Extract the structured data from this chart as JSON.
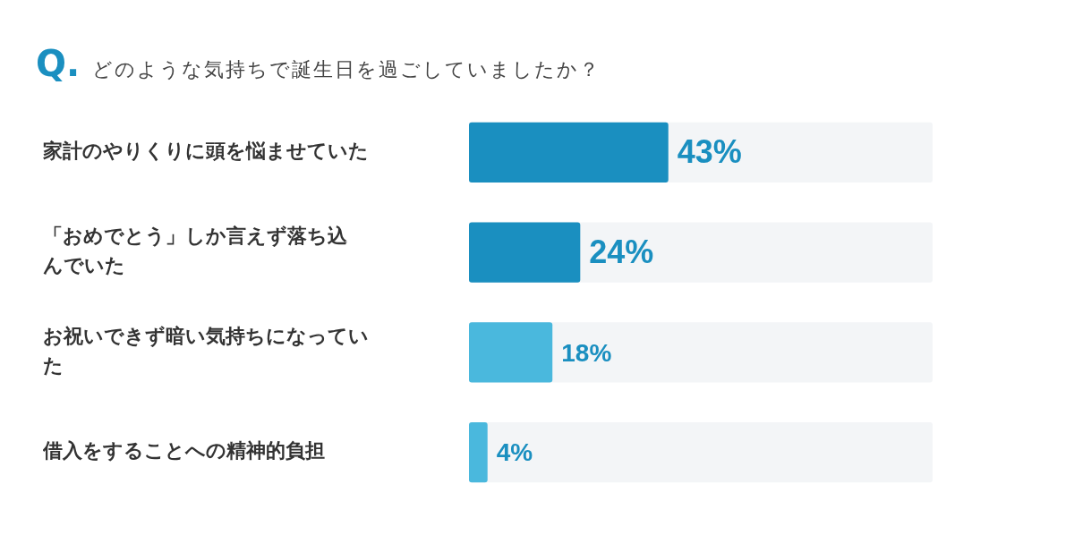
{
  "chart_data": {
    "type": "bar",
    "orientation": "horizontal",
    "title": "どのような気持ちで誕生日を過ごしていましたか？",
    "annotations": [
      "Q."
    ],
    "categories": [
      "家計のやりくりに頭を悩ませていた",
      "「おめでとう」しか言えず落ち込んでいた",
      "お祝いできず暗い気持ちになっていた",
      "借入をすることへの精神的負担"
    ],
    "values": [
      43,
      24,
      18,
      4
    ],
    "colors": [
      "#1a8fc0",
      "#1a8fc0",
      "#4ab8dd",
      "#4ab8dd"
    ],
    "value_labels": [
      "43%",
      "24%",
      "18%",
      "4%"
    ],
    "xlim": [
      0,
      100
    ],
    "grid": false,
    "legend": false
  }
}
